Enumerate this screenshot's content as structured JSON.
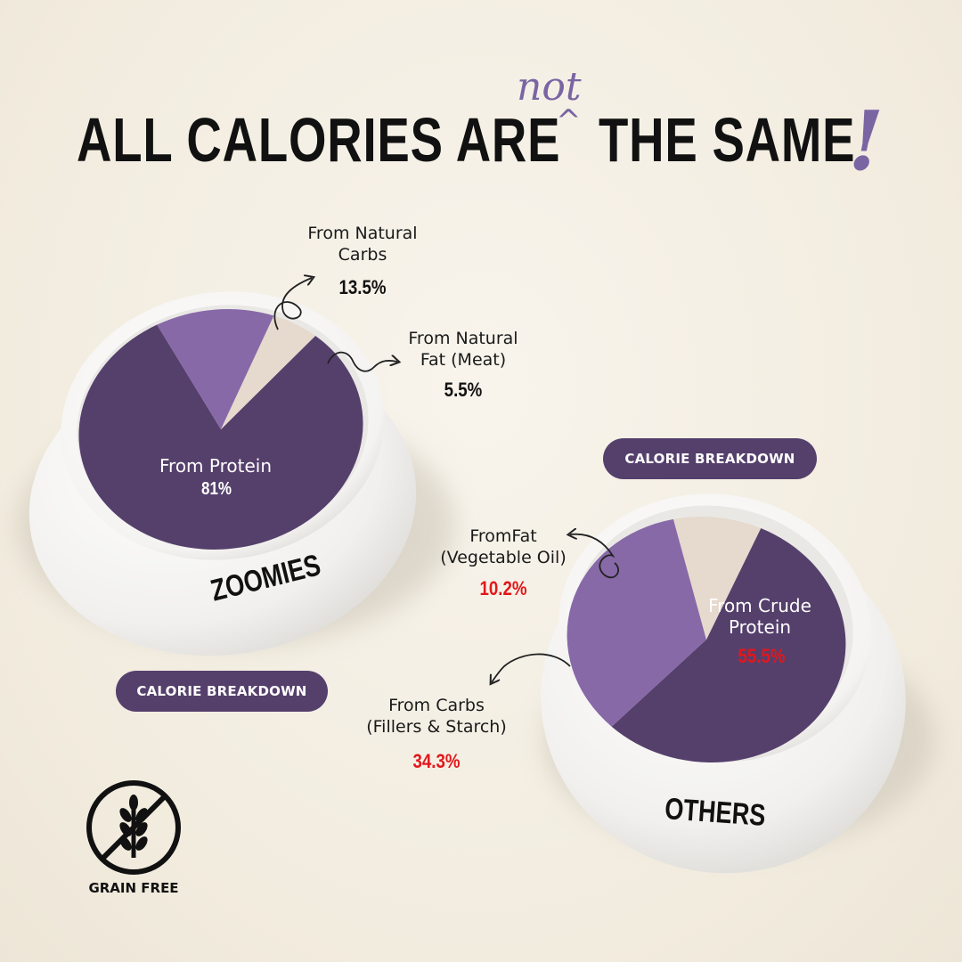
{
  "headline": {
    "left": "ALL CALORIES ARE",
    "insert": "not",
    "caret": "^",
    "right": "THE SAME",
    "exclaim": "!"
  },
  "colors": {
    "dark_purple": "#55406c",
    "light_purple": "#8769a8",
    "beige": "#e6d9cd",
    "red_text": "#e2171b"
  },
  "chart_data": [
    {
      "type": "pie",
      "title": "ZOOMIES",
      "caption": "CALORIE BREAKDOWN",
      "slices": [
        {
          "label": "From Protein",
          "value": 81,
          "display": "81%",
          "color": "#55406c"
        },
        {
          "label": "From Natural Carbs",
          "value": 13.5,
          "display": "13.5%",
          "color": "#8769a8"
        },
        {
          "label": "From Natural Fat (Meat)",
          "value": 5.5,
          "display": "5.5%",
          "color": "#e6d9cd"
        }
      ]
    },
    {
      "type": "pie",
      "title": "OTHERS",
      "caption": "CALORIE BREAKDOWN",
      "slices": [
        {
          "label": "From Crude Protein",
          "value": 55.5,
          "display": "55.5%",
          "color": "#55406c"
        },
        {
          "label": "From Carbs (Fillers & Starch)",
          "value": 34.3,
          "display": "34.3%",
          "color": "#8769a8"
        },
        {
          "label": "FromFat (Vegetable Oil)",
          "value": 10.2,
          "display": "10.2%",
          "color": "#e6d9cd"
        }
      ]
    }
  ],
  "labels": {
    "z_carbs_l1": "From Natural",
    "z_carbs_l2": "Carbs",
    "z_fat_l1": "From Natural",
    "z_fat_l2": "Fat (Meat)",
    "z_protein": "From Protein",
    "o_fat_l1": "FromFat",
    "o_fat_l2": "(Vegetable Oil)",
    "o_carbs_l1": "From Carbs",
    "o_carbs_l2": "(Fillers & Starch)",
    "o_protein_l1": "From Crude",
    "o_protein_l2": "Protein"
  },
  "badge": {
    "icon": "grain-free-icon",
    "label": "GRAIN FREE"
  }
}
